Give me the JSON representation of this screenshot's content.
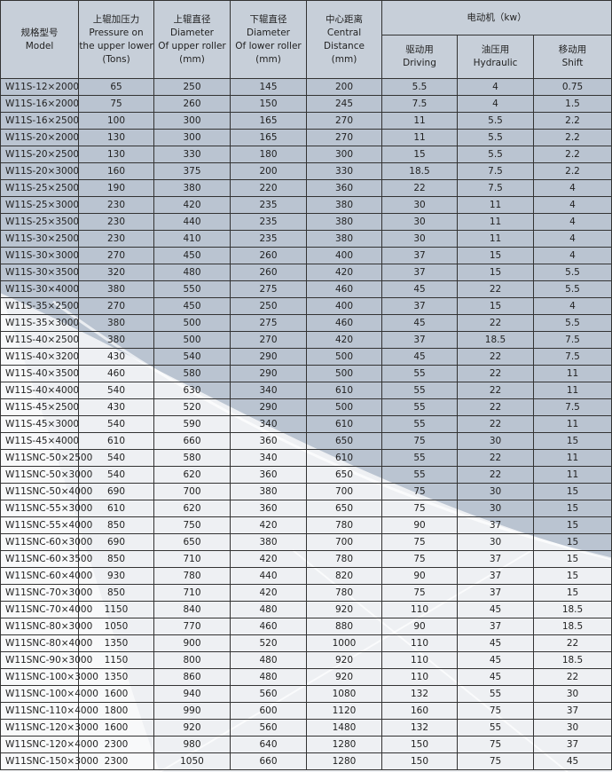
{
  "header": {
    "columns": [
      [
        "规格型号",
        "Model"
      ],
      [
        "上辊加压力",
        "Pressure on",
        "the upper lower",
        "(Tons)"
      ],
      [
        "上辊直径",
        "Diameter",
        "Of upper roller",
        "(mm)"
      ],
      [
        "下辊直径",
        "Diameter",
        "Of lower roller",
        "(mm)"
      ],
      [
        "中心距离",
        "Central",
        "Distance",
        "(mm)"
      ]
    ],
    "motor": "电动机（kw）",
    "motor_columns": [
      [
        "驱动用",
        "Driving"
      ],
      [
        "油压用",
        "Hydraulic"
      ],
      [
        "移动用",
        "Shift"
      ]
    ]
  },
  "table": {
    "rows": [
      [
        "W11S-12×2000",
        "65",
        "250",
        "145",
        "200",
        "5.5",
        "4",
        "0.75"
      ],
      [
        "W11S-16×2000",
        "75",
        "260",
        "150",
        "245",
        "7.5",
        "4",
        "1.5"
      ],
      [
        "W11S-16×2500",
        "100",
        "300",
        "165",
        "270",
        "11",
        "5.5",
        "2.2"
      ],
      [
        "W11S-20×2000",
        "130",
        "300",
        "165",
        "270",
        "11",
        "5.5",
        "2.2"
      ],
      [
        "W11S-20×2500",
        "130",
        "330",
        "180",
        "300",
        "15",
        "5.5",
        "2.2"
      ],
      [
        "W11S-20×3000",
        "160",
        "375",
        "200",
        "330",
        "18.5",
        "7.5",
        "2.2"
      ],
      [
        "W11S-25×2500",
        "190",
        "380",
        "220",
        "360",
        "22",
        "7.5",
        "4"
      ],
      [
        "W11S-25×3000",
        "230",
        "420",
        "235",
        "380",
        "30",
        "11",
        "4"
      ],
      [
        "W11S-25×3500",
        "230",
        "440",
        "235",
        "380",
        "30",
        "11",
        "4"
      ],
      [
        "W11S-30×2500",
        "230",
        "410",
        "235",
        "380",
        "30",
        "11",
        "4"
      ],
      [
        "W11S-30×3000",
        "270",
        "450",
        "260",
        "400",
        "37",
        "15",
        "4"
      ],
      [
        "W11S-30×3500",
        "320",
        "480",
        "260",
        "420",
        "37",
        "15",
        "5.5"
      ],
      [
        "W11S-30×4000",
        "380",
        "550",
        "275",
        "460",
        "45",
        "22",
        "5.5"
      ],
      [
        "W11S-35×2500",
        "270",
        "450",
        "250",
        "400",
        "37",
        "15",
        "4"
      ],
      [
        "W11S-35×3000",
        "380",
        "500",
        "275",
        "460",
        "45",
        "22",
        "5.5"
      ],
      [
        "W11S-40×2500",
        "380",
        "500",
        "270",
        "420",
        "37",
        "18.5",
        "7.5"
      ],
      [
        "W11S-40×3200",
        "430",
        "540",
        "290",
        "500",
        "45",
        "22",
        "7.5"
      ],
      [
        "W11S-40×3500",
        "460",
        "580",
        "290",
        "500",
        "55",
        "22",
        "11"
      ],
      [
        "W11S-40×4000",
        "540",
        "630",
        "340",
        "610",
        "55",
        "22",
        "11"
      ],
      [
        "W11S-45×2500",
        "430",
        "520",
        "290",
        "500",
        "55",
        "22",
        "7.5"
      ],
      [
        "W11S-45×3000",
        "540",
        "590",
        "340",
        "610",
        "55",
        "22",
        "11"
      ],
      [
        "W11S-45×4000",
        "610",
        "660",
        "360",
        "650",
        "75",
        "30",
        "15"
      ],
      [
        "W11SNC-50×2500",
        "540",
        "580",
        "340",
        "610",
        "55",
        "22",
        "11"
      ],
      [
        "W11SNC-50×3000",
        "540",
        "620",
        "360",
        "650",
        "55",
        "22",
        "11"
      ],
      [
        "W11SNC-50×4000",
        "690",
        "700",
        "380",
        "700",
        "75",
        "30",
        "15"
      ],
      [
        "W11SNC-55×3000",
        "610",
        "620",
        "360",
        "650",
        "75",
        "30",
        "15"
      ],
      [
        "W11SNC-55×4000",
        "850",
        "750",
        "420",
        "780",
        "90",
        "37",
        "15"
      ],
      [
        "W11SNC-60×3000",
        "690",
        "650",
        "380",
        "700",
        "75",
        "30",
        "15"
      ],
      [
        "W11SNC-60×3500",
        "850",
        "710",
        "420",
        "780",
        "75",
        "37",
        "15"
      ],
      [
        "W11SNC-60×4000",
        "930",
        "780",
        "440",
        "820",
        "90",
        "37",
        "15"
      ],
      [
        "W11SNC-70×3000",
        "850",
        "710",
        "420",
        "780",
        "75",
        "37",
        "15"
      ],
      [
        "W11SNC-70×4000",
        "1150",
        "840",
        "480",
        "920",
        "110",
        "45",
        "18.5"
      ],
      [
        "W11SNC-80×3000",
        "1050",
        "770",
        "460",
        "880",
        "90",
        "37",
        "18.5"
      ],
      [
        "W11SNC-80×4000",
        "1350",
        "900",
        "520",
        "1000",
        "110",
        "45",
        "22"
      ],
      [
        "W11SNC-90×3000",
        "1150",
        "800",
        "480",
        "920",
        "110",
        "45",
        "18.5"
      ],
      [
        "W11SNC-100×3000",
        "1350",
        "860",
        "480",
        "920",
        "110",
        "45",
        "22"
      ],
      [
        "W11SNC-100×4000",
        "1600",
        "940",
        "560",
        "1080",
        "132",
        "55",
        "30"
      ],
      [
        "W11SNC-110×4000",
        "1800",
        "990",
        "600",
        "1120",
        "160",
        "75",
        "37"
      ],
      [
        "W11SNC-120×3000",
        "1600",
        "920",
        "560",
        "1480",
        "132",
        "55",
        "30"
      ],
      [
        "W11SNC-120×4000",
        "2300",
        "980",
        "640",
        "1280",
        "150",
        "75",
        "37"
      ],
      [
        "W11SNC-150×3000",
        "2300",
        "1050",
        "660",
        "1280",
        "150",
        "75",
        "45"
      ]
    ]
  }
}
